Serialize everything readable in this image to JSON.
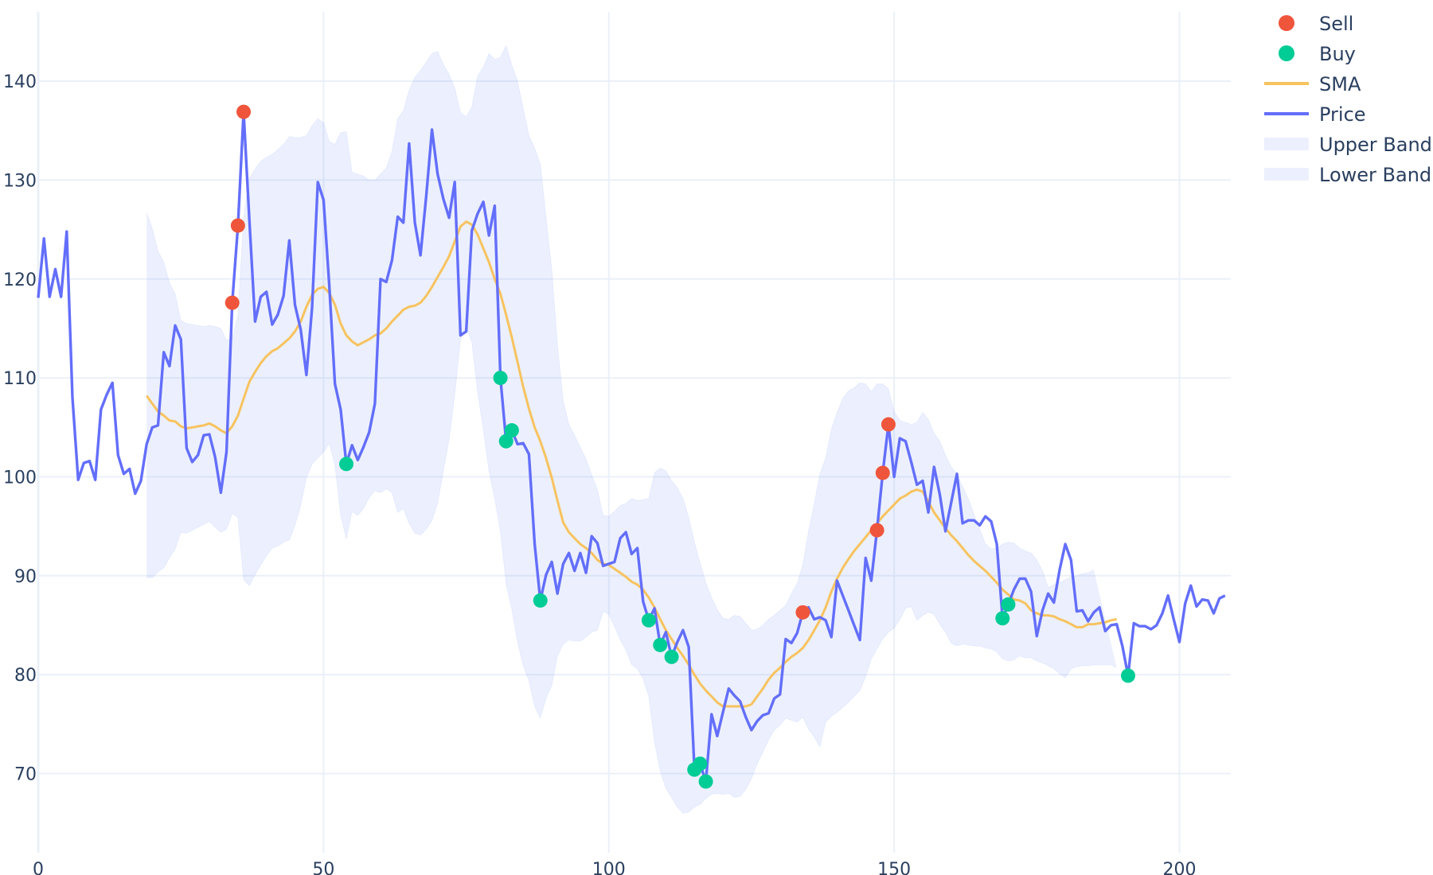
{
  "chart_data": {
    "type": "line",
    "title": "",
    "xlabel": "",
    "ylabel": "",
    "xlim": [
      0,
      209
    ],
    "ylim": [
      62,
      147
    ],
    "grid": true,
    "legend_position": "top-right",
    "x_ticks": [
      0,
      50,
      100,
      150,
      200
    ],
    "y_ticks": [
      70,
      80,
      90,
      100,
      110,
      120,
      130,
      140
    ],
    "colors": {
      "price": "#636efa",
      "sma": "#f7c35f",
      "band_fill": "rgba(99,134,250,0.12)",
      "sell": "#ef553b",
      "buy": "#00cc96",
      "grid": "#ebf0f8",
      "text": "#2a3f5f"
    },
    "series": [
      {
        "name": "Price",
        "type": "line",
        "x_start": 0,
        "values": [
          118.1,
          124.1,
          118.2,
          121.0,
          118.2,
          124.8,
          108.0,
          99.7,
          101.4,
          101.6,
          99.7,
          106.8,
          108.3,
          109.5,
          102.2,
          100.3,
          100.8,
          98.3,
          99.6,
          103.3,
          105.0,
          105.2,
          112.6,
          111.2,
          115.3,
          113.9,
          102.9,
          101.5,
          102.2,
          104.2,
          104.3,
          102.0,
          98.4,
          102.5,
          117.6,
          125.4,
          136.9,
          126.0,
          115.7,
          118.2,
          118.7,
          115.4,
          116.4,
          118.3,
          123.9,
          117.4,
          114.9,
          110.3,
          117.1,
          129.8,
          128.0,
          119.5,
          109.4,
          106.8,
          101.3,
          103.2,
          101.7,
          103.0,
          104.5,
          107.4,
          120.0,
          119.7,
          121.9,
          126.3,
          125.7,
          133.7,
          125.7,
          122.4,
          128.4,
          135.1,
          130.6,
          128.1,
          126.2,
          129.8,
          114.3,
          114.7,
          124.9,
          126.6,
          127.8,
          124.4,
          127.4,
          110.0,
          103.6,
          104.7,
          103.3,
          103.4,
          102.3,
          93.2,
          87.5,
          90.1,
          91.4,
          88.2,
          91.2,
          92.3,
          90.5,
          92.3,
          90.3,
          94.0,
          93.3,
          91.0,
          91.2,
          91.4,
          93.8,
          94.4,
          92.2,
          92.8,
          87.4,
          85.5,
          86.7,
          83.0,
          84.3,
          81.8,
          83.3,
          84.5,
          82.8,
          70.4,
          71.0,
          69.2,
          76.0,
          73.8,
          76.2,
          78.6,
          77.9,
          77.3,
          75.7,
          74.4,
          75.3,
          75.9,
          76.1,
          77.6,
          78.0,
          83.6,
          83.2,
          84.2,
          86.3,
          86.8,
          85.6,
          85.8,
          85.5,
          83.8,
          89.5,
          88.0,
          86.5,
          85.0,
          83.5,
          91.8,
          89.5,
          94.6,
          100.4,
          105.3,
          100.0,
          103.9,
          103.6,
          101.5,
          99.2,
          99.6,
          96.4,
          101.0,
          98.2,
          94.5,
          97.4,
          100.3,
          95.3,
          95.6,
          95.6,
          95.1,
          96.0,
          95.5,
          93.2,
          85.7,
          87.1,
          88.6,
          89.7,
          89.7,
          88.4,
          83.9,
          86.5,
          88.2,
          87.3,
          90.6,
          93.2,
          91.6,
          86.4,
          86.5,
          85.4,
          86.3,
          86.8,
          84.4,
          85.0,
          85.1,
          82.9,
          79.9,
          85.2,
          84.9,
          84.9,
          84.6,
          85.0,
          86.2,
          88.0,
          85.6,
          83.3,
          87.2,
          89.0,
          86.9,
          87.6,
          87.5,
          86.2,
          87.7,
          88.0
        ]
      },
      {
        "name": "SMA",
        "type": "line",
        "x_start": 19,
        "values": [
          108.2,
          107.4,
          106.6,
          106.2,
          105.7,
          105.6,
          105.1,
          104.9,
          105.0,
          105.1,
          105.2,
          105.4,
          105.1,
          104.7,
          104.4,
          105.1,
          106.2,
          107.9,
          109.6,
          110.6,
          111.5,
          112.2,
          112.7,
          113.0,
          113.5,
          114.0,
          114.7,
          115.7,
          117.2,
          118.4,
          119.0,
          119.2,
          118.6,
          117.4,
          115.5,
          114.3,
          113.7,
          113.3,
          113.6,
          113.9,
          114.3,
          114.5,
          115.0,
          115.7,
          116.3,
          116.9,
          117.2,
          117.3,
          117.6,
          118.3,
          119.2,
          120.2,
          121.2,
          122.3,
          123.8,
          125.3,
          125.8,
          125.5,
          124.5,
          123.1,
          121.7,
          120.0,
          118.5,
          116.4,
          114.1,
          111.6,
          109.1,
          106.9,
          105.0,
          103.6,
          101.9,
          99.9,
          97.6,
          95.4,
          94.4,
          93.8,
          93.2,
          92.8,
          92.3,
          91.6,
          91.2,
          91.1,
          90.7,
          90.3,
          89.9,
          89.4,
          89.1,
          88.6,
          87.8,
          86.8,
          85.6,
          84.5,
          83.6,
          82.7,
          81.9,
          81.0,
          80.0,
          79.1,
          78.4,
          77.8,
          77.2,
          76.8,
          76.8,
          76.8,
          76.8,
          76.8,
          77.0,
          77.8,
          78.6,
          79.5,
          80.2,
          80.7,
          81.3,
          81.8,
          82.2,
          82.7,
          83.5,
          84.5,
          85.5,
          86.8,
          88.4,
          89.7,
          90.8,
          91.7,
          92.5,
          93.2,
          93.9,
          94.6,
          95.3,
          96.0,
          96.6,
          97.2,
          97.8,
          98.1,
          98.5,
          98.7,
          98.5,
          97.5,
          96.4,
          95.6,
          94.8,
          94.1,
          93.5,
          92.8,
          92.1,
          91.5,
          91.0,
          90.5,
          89.9,
          89.3,
          88.6,
          88.1,
          87.6,
          87.5,
          87.2,
          86.5,
          86.2,
          86.0,
          86.0,
          85.9,
          85.6,
          85.4,
          85.1,
          84.8,
          84.8,
          85.1,
          85.1,
          85.2,
          85.3,
          85.5,
          85.6
        ]
      },
      {
        "name": "Upper Band",
        "type": "area",
        "x_start": 19,
        "values": [
          126.7,
          125.1,
          122.8,
          121.7,
          119.6,
          118.5,
          115.8,
          115.5,
          115.4,
          115.3,
          115.2,
          115.3,
          115.2,
          115.0,
          113.8,
          114.0,
          116.4,
          126.2,
          130.2,
          131.1,
          131.9,
          132.3,
          132.6,
          133.1,
          133.6,
          134.4,
          134.3,
          134.3,
          134.5,
          135.5,
          136.2,
          135.8,
          133.9,
          133.6,
          134.8,
          134.9,
          130.8,
          130.6,
          130.4,
          130.0,
          130.0,
          130.6,
          131.2,
          132.9,
          136.2,
          137.0,
          139.1,
          140.4,
          141.1,
          141.9,
          142.8,
          143.0,
          141.7,
          140.7,
          139.3,
          136.8,
          136.4,
          137.4,
          140.5,
          141.4,
          142.8,
          142.2,
          142.4,
          143.6,
          141.6,
          140.0,
          137.2,
          134.5,
          133.2,
          131.6,
          126.2,
          120.9,
          113.3,
          107.7,
          105.3,
          104.2,
          103.0,
          101.8,
          100.2,
          98.7,
          96.1,
          96.0,
          96.5,
          97.1,
          97.3,
          97.8,
          97.6,
          97.7,
          97.8,
          100.4,
          100.9,
          100.6,
          99.6,
          98.9,
          97.8,
          95.9,
          93.4,
          91.3,
          89.3,
          87.8,
          86.6,
          85.7,
          85.6,
          86.0,
          85.9,
          85.2,
          84.5,
          84.6,
          85.0,
          85.6,
          86.0,
          86.5,
          87.0,
          88.2,
          89.2,
          91.1,
          94.5,
          97.3,
          100.3,
          101.9,
          104.8,
          106.5,
          107.9,
          108.7,
          109.0,
          109.5,
          109.4,
          108.6,
          109.4,
          109.4,
          108.9,
          106.6,
          105.7,
          105.5,
          105.3,
          105.5,
          106.5,
          105.8,
          104.4,
          103.6,
          102.2,
          101.0,
          100.3,
          99.0,
          97.8,
          96.2,
          94.7,
          93.2,
          92.7,
          92.8,
          93.2,
          93.4,
          93.3,
          92.8,
          92.5,
          92.3,
          91.6,
          90.5,
          88.8,
          89.1,
          89.3,
          89.6,
          89.9,
          90.0,
          90.2,
          90.3,
          90.6
        ]
      },
      {
        "name": "Lower Band",
        "type": "area",
        "x_start": 19,
        "values": [
          89.8,
          89.8,
          90.4,
          90.8,
          91.8,
          92.7,
          94.4,
          94.3,
          94.6,
          94.9,
          95.2,
          95.5,
          94.9,
          94.4,
          94.7,
          96.3,
          95.9,
          89.6,
          89.0,
          90.1,
          91.1,
          92.0,
          92.8,
          93.0,
          93.4,
          93.6,
          95.1,
          97.1,
          99.9,
          101.3,
          101.9,
          102.5,
          103.4,
          101.2,
          96.2,
          93.7,
          96.5,
          96.1,
          96.8,
          97.9,
          98.6,
          98.4,
          98.8,
          98.4,
          96.4,
          96.8,
          95.3,
          94.3,
          94.1,
          94.7,
          95.6,
          97.3,
          100.6,
          103.8,
          108.3,
          113.9,
          115.2,
          113.6,
          108.6,
          104.8,
          100.6,
          97.8,
          94.5,
          89.2,
          86.6,
          83.3,
          80.9,
          79.4,
          76.8,
          75.6,
          77.6,
          78.9,
          81.9,
          83.1,
          83.5,
          83.4,
          83.4,
          83.8,
          84.3,
          84.5,
          86.4,
          86.1,
          84.9,
          83.5,
          82.5,
          81.0,
          80.6,
          79.6,
          77.8,
          73.2,
          70.3,
          68.5,
          67.6,
          66.6,
          66.0,
          66.1,
          66.6,
          66.9,
          67.5,
          67.9,
          68.0,
          67.9,
          68.0,
          67.6,
          67.7,
          68.4,
          69.5,
          71.0,
          72.2,
          73.4,
          74.4,
          74.9,
          75.6,
          75.4,
          75.2,
          75.7,
          74.5,
          73.7,
          72.7,
          75.2,
          75.8,
          76.2,
          76.7,
          77.2,
          77.8,
          78.4,
          79.8,
          81.6,
          82.6,
          83.6,
          84.3,
          84.7,
          85.6,
          86.7,
          86.9,
          85.5,
          86.0,
          86.3,
          86.1,
          85.1,
          84.3,
          83.2,
          82.9,
          83.1,
          83.0,
          82.9,
          82.9,
          82.7,
          82.6,
          82.3,
          81.6,
          81.4,
          81.5,
          81.9,
          81.7,
          81.7,
          81.4,
          81.2,
          80.9,
          80.6,
          80.1,
          79.7,
          80.6,
          80.8,
          80.9,
          80.9,
          81.0,
          81.0,
          81.0,
          81.0,
          80.7
        ]
      },
      {
        "name": "Sell",
        "type": "scatter",
        "x": [
          34,
          35,
          36,
          134,
          147,
          148,
          149
        ],
        "y": [
          117.6,
          125.4,
          136.9,
          86.3,
          94.6,
          100.4,
          105.3
        ]
      },
      {
        "name": "Buy",
        "type": "scatter",
        "x": [
          54,
          81,
          82,
          83,
          88,
          107,
          109,
          111,
          115,
          116,
          117,
          169,
          170,
          191
        ],
        "y": [
          101.3,
          110.0,
          103.6,
          104.7,
          87.5,
          85.5,
          83.0,
          81.8,
          70.4,
          71.0,
          69.2,
          85.7,
          87.1,
          79.9
        ]
      }
    ],
    "legend": [
      {
        "label": "Sell",
        "kind": "marker",
        "color_key": "sell"
      },
      {
        "label": "Buy",
        "kind": "marker",
        "color_key": "buy"
      },
      {
        "label": "SMA",
        "kind": "line",
        "color_key": "sma"
      },
      {
        "label": "Price",
        "kind": "line",
        "color_key": "price"
      },
      {
        "label": "Upper Band",
        "kind": "fill",
        "color_key": "band_fill"
      },
      {
        "label": "Lower Band",
        "kind": "fill",
        "color_key": "band_fill"
      }
    ]
  }
}
